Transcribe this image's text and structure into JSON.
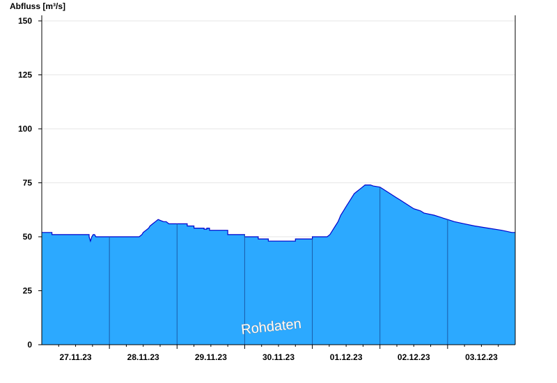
{
  "chart_data": {
    "type": "area",
    "title": "",
    "ylabel": "Abfluss [m³/s]",
    "xlabel": "",
    "ylim": [
      0,
      150
    ],
    "yticks": [
      0,
      25,
      50,
      75,
      100,
      125,
      150
    ],
    "xlim": [
      0,
      7
    ],
    "day_labels": [
      "27.11.23",
      "28.11.23",
      "29.11.23",
      "30.11.23",
      "01.12.23",
      "02.12.23",
      "03.12.23"
    ],
    "watermark": "Rohdaten",
    "colors": {
      "fill": "#2ca9ff",
      "line": "#0000cc",
      "divider": "#1a5aa8"
    },
    "grid": "horizontal",
    "x": [
      0,
      0.15,
      0.15,
      0.7,
      0.7,
      0.72,
      0.74,
      0.76,
      0.78,
      0.8,
      0.8,
      1.0,
      1.44,
      1.48,
      1.5,
      1.54,
      1.58,
      1.6,
      1.64,
      1.68,
      1.72,
      1.76,
      1.8,
      1.84,
      1.88,
      2.0,
      2.15,
      2.15,
      2.25,
      2.25,
      2.4,
      2.4,
      2.44,
      2.44,
      2.48,
      2.48,
      2.75,
      2.75,
      3.0,
      3.0,
      3.2,
      3.2,
      3.35,
      3.35,
      3.75,
      3.75,
      4.0,
      4.0,
      4.22,
      4.26,
      4.3,
      4.34,
      4.38,
      4.42,
      4.46,
      4.5,
      4.54,
      4.58,
      4.62,
      4.66,
      4.7,
      4.74,
      4.78,
      4.82,
      4.86,
      4.9,
      5.0,
      5.05,
      5.1,
      5.15,
      5.2,
      5.25,
      5.3,
      5.35,
      5.4,
      5.45,
      5.5,
      5.6,
      5.65,
      5.8,
      5.9,
      6.0,
      6.1,
      6.25,
      6.4,
      6.6,
      6.8,
      6.95,
      7.0
    ],
    "values": [
      52,
      52,
      51,
      51,
      50,
      48,
      50,
      51,
      51,
      50,
      50,
      50,
      50,
      51,
      52,
      53,
      54,
      55,
      56,
      57,
      58,
      57.5,
      57,
      57,
      56,
      56,
      56,
      55,
      55,
      54,
      54,
      53.5,
      53.5,
      54,
      54,
      53,
      53,
      51,
      51,
      50,
      50,
      49,
      49,
      48,
      48,
      49,
      49,
      50,
      50,
      51,
      53,
      55,
      57,
      60,
      62,
      64,
      66,
      68,
      70,
      71,
      72,
      73,
      74,
      74,
      74,
      73.5,
      73,
      72,
      71,
      70,
      69,
      68,
      67,
      66,
      65,
      64,
      63,
      62,
      61,
      60,
      59,
      58,
      57,
      56,
      55,
      54,
      53,
      52,
      52
    ]
  }
}
